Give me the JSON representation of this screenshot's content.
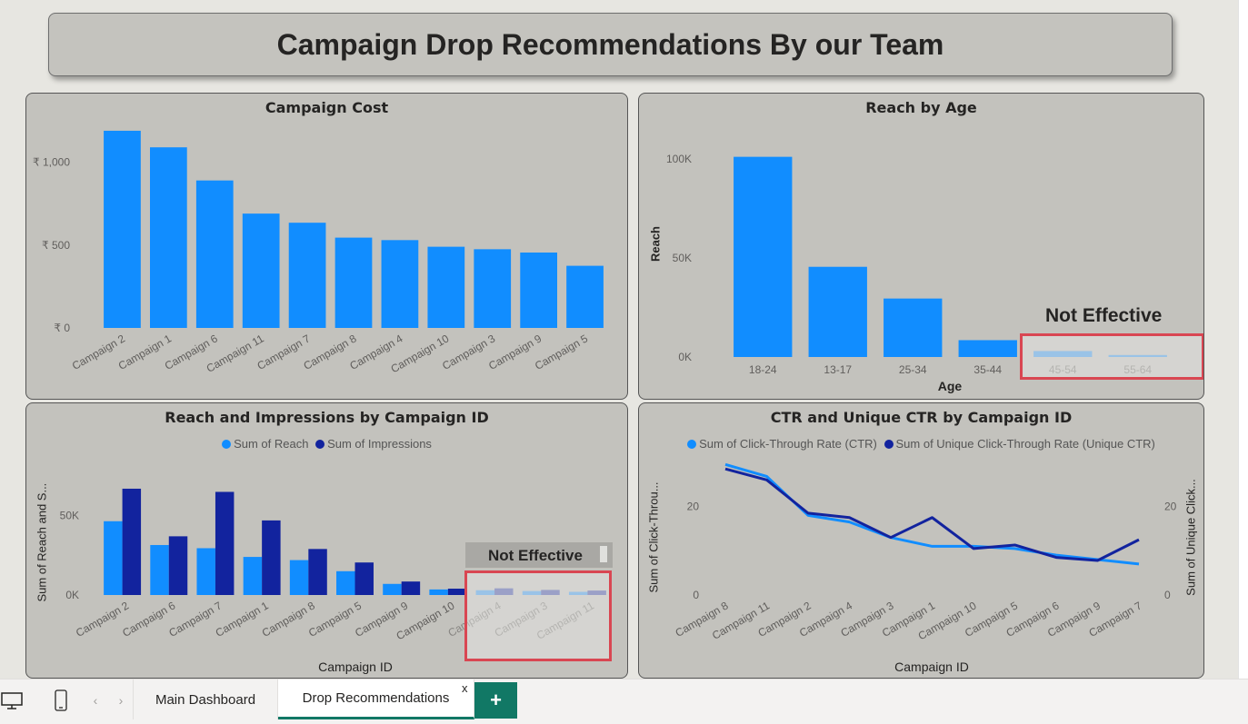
{
  "report": {
    "title": "Campaign Drop Recommendations By our Team"
  },
  "colors": {
    "reach": "#118dff",
    "impressions": "#12239e",
    "panel_bg": "#c3c2bd",
    "highlight_border": "#d94652",
    "tab_accent": "#117865"
  },
  "annotations": {
    "reach_by_age_note": "Not Effective",
    "reach_impressions_note": "Not Effective"
  },
  "tabs": {
    "items": [
      {
        "label": "Main Dashboard",
        "active": false
      },
      {
        "label": "Drop Recommendations",
        "active": true
      }
    ],
    "close_label": "x",
    "add_label": "+",
    "icons": [
      "desktop-view-icon",
      "mobile-view-icon",
      "chevron-left-icon",
      "chevron-right-icon",
      "plus-icon"
    ]
  },
  "chart_data": [
    {
      "id": "campaign_cost",
      "type": "bar",
      "title": "Campaign Cost",
      "categories": [
        "Campaign 2",
        "Campaign 1",
        "Campaign 6",
        "Campaign 11",
        "Campaign 7",
        "Campaign 8",
        "Campaign 4",
        "Campaign 10",
        "Campaign 3",
        "Campaign 9",
        "Campaign 5"
      ],
      "values": [
        1190,
        1090,
        890,
        690,
        635,
        545,
        530,
        490,
        475,
        455,
        375
      ],
      "yticks": [
        "₹ 0",
        "₹ 500",
        "₹ 1,000"
      ],
      "ylim": [
        0,
        1250
      ]
    },
    {
      "id": "reach_by_age",
      "type": "bar",
      "title": "Reach by Age",
      "categories": [
        "18-24",
        "13-17",
        "25-34",
        "35-44",
        "45-54",
        "55-64"
      ],
      "values": [
        101000,
        45500,
        29500,
        8500,
        3000,
        1000
      ],
      "highlighted": [
        "45-54",
        "55-64"
      ],
      "xlabel": "Age",
      "ylabel": "Reach",
      "yticks": [
        "0K",
        "50K",
        "100K"
      ],
      "ylim": [
        0,
        110000
      ]
    },
    {
      "id": "reach_impressions",
      "type": "bar",
      "title": "Reach and Impressions by Campaign ID",
      "categories": [
        "Campaign 2",
        "Campaign 6",
        "Campaign 7",
        "Campaign 1",
        "Campaign 8",
        "Campaign 5",
        "Campaign 9",
        "Campaign 10",
        "Campaign 4",
        "Campaign 3",
        "Campaign 11"
      ],
      "series": [
        {
          "name": "Sum of Reach",
          "values": [
            46500,
            31500,
            29500,
            24000,
            22000,
            15000,
            7000,
            3500,
            3000,
            2500,
            2000
          ]
        },
        {
          "name": "Sum of Impressions",
          "values": [
            67000,
            37000,
            65000,
            47000,
            29000,
            20500,
            8500,
            4000,
            4200,
            3200,
            2800
          ]
        }
      ],
      "highlighted": [
        "Campaign 4",
        "Campaign 3",
        "Campaign 11"
      ],
      "xlabel": "Campaign ID",
      "ylabel": "Sum of Reach and S...",
      "yticks": [
        "0K",
        "50K"
      ],
      "ylim": [
        0,
        75000
      ]
    },
    {
      "id": "ctr_unique_ctr",
      "type": "line",
      "title": "CTR and Unique CTR by Campaign ID",
      "categories": [
        "Campaign 8",
        "Campaign 11",
        "Campaign 2",
        "Campaign 4",
        "Campaign 3",
        "Campaign 1",
        "Campaign 10",
        "Campaign 5",
        "Campaign 6",
        "Campaign 9",
        "Campaign 7"
      ],
      "series": [
        {
          "name": "Sum of Click-Through Rate (CTR)",
          "values": [
            29.5,
            26.8,
            18.0,
            16.5,
            13.0,
            11.0,
            11.0,
            10.5,
            9.0,
            8.0,
            7.0
          ]
        },
        {
          "name": "Sum of Unique Click-Through Rate (Unique CTR)",
          "values": [
            28.5,
            26.0,
            18.5,
            17.5,
            13.0,
            17.5,
            10.5,
            11.3,
            8.5,
            7.8,
            12.5
          ]
        }
      ],
      "xlabel": "Campaign ID",
      "ylabel": "Sum of Click-Throu...",
      "ylabel_right": "Sum of Unique Click...",
      "yticks": [
        "0",
        "20"
      ],
      "yticks_right": [
        "0",
        "20"
      ],
      "ylim": [
        0,
        31
      ]
    }
  ]
}
